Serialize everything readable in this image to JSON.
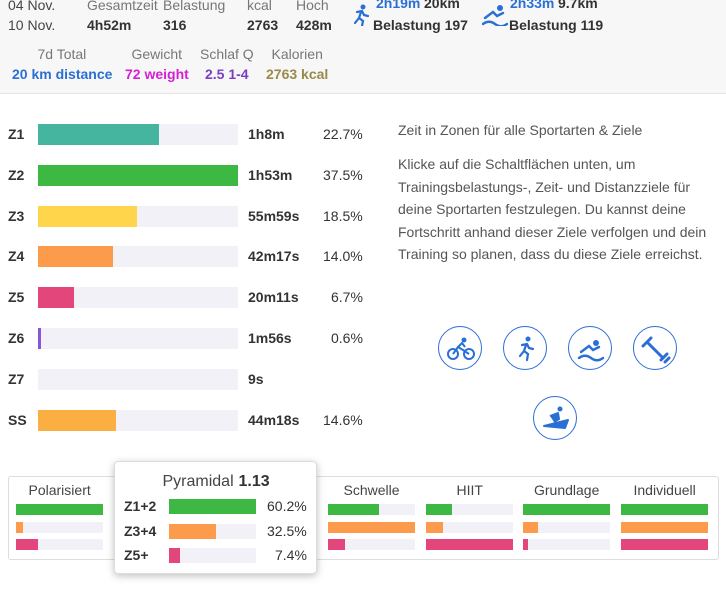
{
  "summary": {
    "dates": [
      "04 Nov.",
      "10 Nov."
    ],
    "columns": [
      {
        "label": "Gesamtzeit",
        "value": "4h52m"
      },
      {
        "label": "Belastung",
        "value": 316
      },
      {
        "label": "kcal",
        "value": 2763
      },
      {
        "label": "Hoch",
        "value": "428m"
      }
    ],
    "sports": [
      {
        "time": "2h19m",
        "distance": "20km",
        "load": "Belastung 197"
      },
      {
        "time": "2h33m",
        "distance": "9.7km",
        "load": "Belastung 119"
      }
    ]
  },
  "totals": [
    {
      "label": "7d Total",
      "value": "20 km distance",
      "color": "#2a6fd4"
    },
    {
      "label": "Gewicht",
      "value": "72 weight",
      "color": "#d41fd4"
    },
    {
      "label": "Schlaf Q",
      "value": "2.5 1-4",
      "color": "#7b3fc4"
    },
    {
      "label": "Kalorien",
      "value": "2763 kcal",
      "color": "#9a8a4a"
    }
  ],
  "zones": [
    {
      "zone": "Z1",
      "time": "1h8m",
      "percent": 22.7,
      "percent_label": "22.7%",
      "color": "#46b5a0"
    },
    {
      "zone": "Z2",
      "time": "1h53m",
      "percent": 37.5,
      "percent_label": "37.5%",
      "color": "#3cb843"
    },
    {
      "zone": "Z3",
      "time": "55m59s",
      "percent": 18.5,
      "percent_label": "18.5%",
      "color": "#ffd54c"
    },
    {
      "zone": "Z4",
      "time": "42m17s",
      "percent": 14.0,
      "percent_label": "14.0%",
      "color": "#fb9b4b"
    },
    {
      "zone": "Z5",
      "time": "20m11s",
      "percent": 6.7,
      "percent_label": "6.7%",
      "color": "#e2467a"
    },
    {
      "zone": "Z6",
      "time": "1m56s",
      "percent": 0.6,
      "percent_label": "0.6%",
      "color": "#8a55d6"
    },
    {
      "zone": "Z7",
      "time": "9s"
    },
    {
      "zone": "SS",
      "time": "44m18s",
      "percent": 14.6,
      "percent_label": "14.6%",
      "color": "#fbae42"
    }
  ],
  "zones_info": {
    "title": "Zeit in Zonen für alle Sportarten & Ziele",
    "text": "Klicke auf die Schaltflächen unten, um Trainingsbelastungs-, Zeit- und Distanzziele für deine Sportarten festzulegen. Du kannst deine Fortschritt anhand dieser Ziele verfolgen und dein Training so planen, dass du diese Ziele erreichst."
  },
  "presets": {
    "colors": [
      "#3cb843",
      "#fb9b4b",
      "#e2467a"
    ],
    "columns": [
      {
        "name": "Polarisiert",
        "values": [
          75,
          6,
          19
        ]
      },
      {
        "name": "Schwelle",
        "values": [
          33,
          56,
          11
        ]
      },
      {
        "name": "HIIT",
        "values": [
          20,
          13,
          67
        ]
      },
      {
        "name": "Grundlage",
        "values": [
          81,
          14,
          5
        ]
      },
      {
        "name": "Individuell",
        "values": [
          33,
          33,
          33
        ]
      }
    ],
    "popup": {
      "name": "Pyramidal",
      "score": "1.13",
      "rows": [
        {
          "label": "Z1+2",
          "value": 60.2,
          "value_label": "60.2%"
        },
        {
          "label": "Z3+4",
          "value": 32.5,
          "value_label": "32.5%"
        },
        {
          "label": "Z5+",
          "value": 7.4,
          "value_label": "7.4%"
        }
      ]
    }
  }
}
